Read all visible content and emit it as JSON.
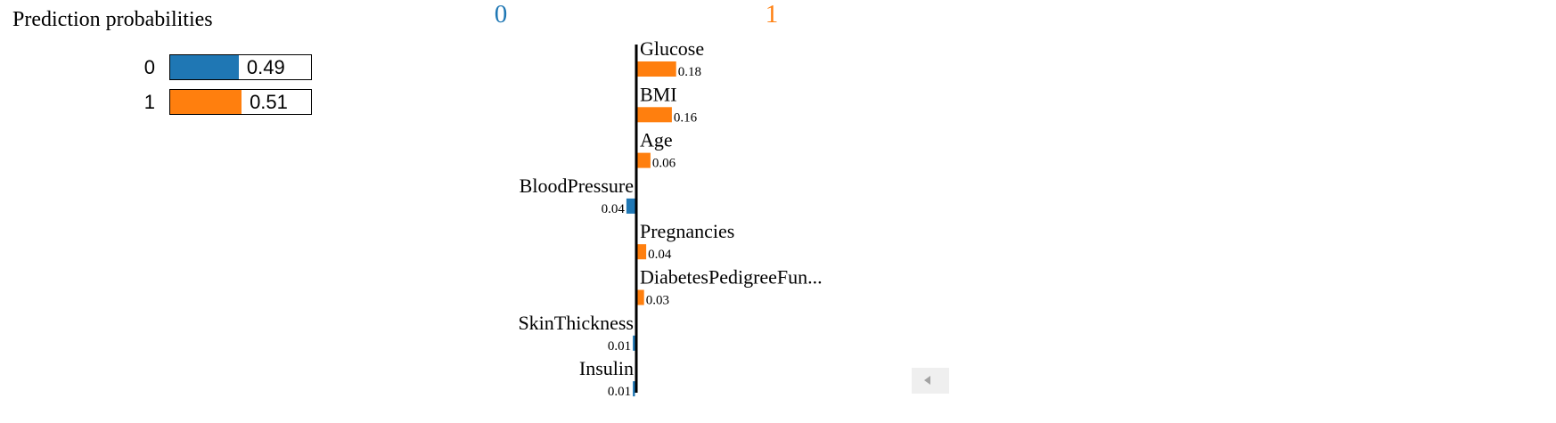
{
  "prediction": {
    "title": "Prediction probabilities",
    "rows": [
      {
        "label": "0",
        "value": 0.49,
        "value_text": "0.49",
        "color": "#1f77b4"
      },
      {
        "label": "1",
        "value": 0.51,
        "value_text": "0.51",
        "color": "#ff7f0e"
      }
    ]
  },
  "explanation": {
    "class_headers": [
      {
        "label": "0",
        "color": "#1f77b4"
      },
      {
        "label": "1",
        "color": "#ff7f0e"
      }
    ]
  },
  "chart_data": {
    "type": "bar",
    "orientation": "horizontal",
    "categories": [
      "Glucose",
      "BMI",
      "Age",
      "BloodPressure",
      "Pregnancies",
      "DiabetesPedigreeFun...",
      "SkinThickness",
      "Insulin"
    ],
    "values": [
      0.18,
      0.16,
      0.06,
      -0.04,
      0.04,
      0.03,
      -0.01,
      -0.01
    ],
    "value_labels": [
      "0.18",
      "0.16",
      "0.06",
      "0.04",
      "0.04",
      "0.03",
      "0.01",
      "0.01"
    ],
    "negative_color": "#1f77b4",
    "positive_color": "#ff7f0e"
  },
  "scroll": {
    "icon": "scroll-left-arrow-icon"
  }
}
